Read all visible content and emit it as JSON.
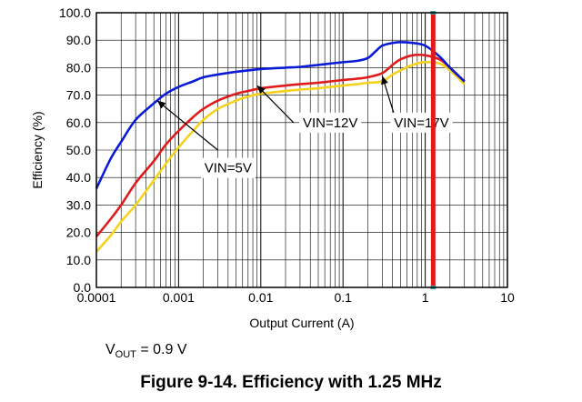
{
  "chart_data": {
    "type": "line",
    "xscale": "log",
    "xlim": [
      0.0001,
      10
    ],
    "ylim": [
      0,
      100
    ],
    "grid": true,
    "xlabel": "Output Current (A)",
    "ylabel": "Efficiency (%)",
    "xticks": [
      {
        "value": 0.0001,
        "label": "0.0001"
      },
      {
        "value": 0.001,
        "label": "0.001"
      },
      {
        "value": 0.01,
        "label": "0.01"
      },
      {
        "value": 0.1,
        "label": "0.1"
      },
      {
        "value": 1,
        "label": "1"
      },
      {
        "value": 10,
        "label": "10"
      }
    ],
    "yticks": [
      {
        "value": 0,
        "label": "0.0"
      },
      {
        "value": 10,
        "label": "10.0"
      },
      {
        "value": 20,
        "label": "20.0"
      },
      {
        "value": 30,
        "label": "30.0"
      },
      {
        "value": 40,
        "label": "40.0"
      },
      {
        "value": 50,
        "label": "50.0"
      },
      {
        "value": 60,
        "label": "60.0"
      },
      {
        "value": 70,
        "label": "70.0"
      },
      {
        "value": 80,
        "label": "80.0"
      },
      {
        "value": 90,
        "label": "90.0"
      },
      {
        "value": 100,
        "label": "100.0"
      }
    ],
    "series": [
      {
        "name": "VIN=5V",
        "color": "#0a1bd6",
        "points": [
          [
            0.0001,
            36
          ],
          [
            0.00015,
            47
          ],
          [
            0.0002,
            53
          ],
          [
            0.0003,
            61
          ],
          [
            0.0005,
            67
          ],
          [
            0.0007,
            70.5
          ],
          [
            0.001,
            73
          ],
          [
            0.0015,
            75
          ],
          [
            0.002,
            76.5
          ],
          [
            0.003,
            77.5
          ],
          [
            0.005,
            78.5
          ],
          [
            0.007,
            79
          ],
          [
            0.01,
            79.5
          ],
          [
            0.02,
            80
          ],
          [
            0.03,
            80.3
          ],
          [
            0.05,
            81
          ],
          [
            0.07,
            81.5
          ],
          [
            0.1,
            82
          ],
          [
            0.15,
            82.5
          ],
          [
            0.2,
            83.5
          ],
          [
            0.25,
            86
          ],
          [
            0.3,
            88
          ],
          [
            0.4,
            89
          ],
          [
            0.5,
            89.3
          ],
          [
            0.7,
            89
          ],
          [
            1,
            88
          ],
          [
            1.5,
            84
          ],
          [
            2,
            80
          ],
          [
            3,
            75
          ]
        ]
      },
      {
        "name": "VIN=12V",
        "color": "#e01b1b",
        "points": [
          [
            0.0001,
            18.5
          ],
          [
            0.00015,
            25
          ],
          [
            0.0002,
            30
          ],
          [
            0.0003,
            38
          ],
          [
            0.0005,
            46
          ],
          [
            0.0007,
            52
          ],
          [
            0.001,
            57
          ],
          [
            0.0015,
            62
          ],
          [
            0.002,
            65
          ],
          [
            0.003,
            68
          ],
          [
            0.005,
            70.5
          ],
          [
            0.007,
            71.5
          ],
          [
            0.01,
            72.5
          ],
          [
            0.02,
            73.5
          ],
          [
            0.03,
            74
          ],
          [
            0.05,
            74.5
          ],
          [
            0.07,
            75
          ],
          [
            0.1,
            75.5
          ],
          [
            0.15,
            76
          ],
          [
            0.2,
            76.5
          ],
          [
            0.3,
            78
          ],
          [
            0.4,
            81
          ],
          [
            0.5,
            83
          ],
          [
            0.7,
            84.5
          ],
          [
            1,
            84.5
          ],
          [
            1.5,
            83
          ],
          [
            2,
            80
          ],
          [
            3,
            75
          ]
        ]
      },
      {
        "name": "VIN=17V",
        "color": "#f5d31c",
        "points": [
          [
            0.0001,
            13
          ],
          [
            0.00015,
            19
          ],
          [
            0.0002,
            24
          ],
          [
            0.0003,
            30
          ],
          [
            0.0005,
            39
          ],
          [
            0.0007,
            45
          ],
          [
            0.001,
            51
          ],
          [
            0.0015,
            57
          ],
          [
            0.002,
            61
          ],
          [
            0.003,
            65
          ],
          [
            0.005,
            68
          ],
          [
            0.007,
            69.5
          ],
          [
            0.01,
            70.5
          ],
          [
            0.02,
            71.5
          ],
          [
            0.03,
            72
          ],
          [
            0.05,
            72.5
          ],
          [
            0.07,
            73
          ],
          [
            0.1,
            73.5
          ],
          [
            0.15,
            74
          ],
          [
            0.2,
            74.5
          ],
          [
            0.3,
            75
          ],
          [
            0.4,
            77.5
          ],
          [
            0.5,
            79
          ],
          [
            0.7,
            81
          ],
          [
            1,
            82
          ],
          [
            1.5,
            81.5
          ],
          [
            2,
            79
          ],
          [
            3,
            74
          ]
        ]
      }
    ],
    "annotations": [
      {
        "text": "VIN=5V",
        "label_at": [
          0.004,
          43.5
        ],
        "arrow_from": [
          0.003,
          50
        ],
        "arrow_to": [
          0.00055,
          68
        ]
      },
      {
        "text": "VIN=12V",
        "label_at": [
          0.07,
          60
        ],
        "arrow_from": [
          0.025,
          60
        ],
        "arrow_to": [
          0.009,
          73.5
        ]
      },
      {
        "text": "VIN=17V",
        "label_at": [
          0.9,
          60
        ],
        "arrow_from": [
          0.45,
          60
        ],
        "arrow_to": [
          0.3,
          77
        ]
      }
    ],
    "marker_line": {
      "x": 1.25,
      "color": "#e01b1b"
    }
  },
  "vout": {
    "prefix": "V",
    "sub": "OUT",
    "text": " = 0.9 V"
  },
  "caption": "Figure 9-14. Efficiency with 1.25 MHz"
}
